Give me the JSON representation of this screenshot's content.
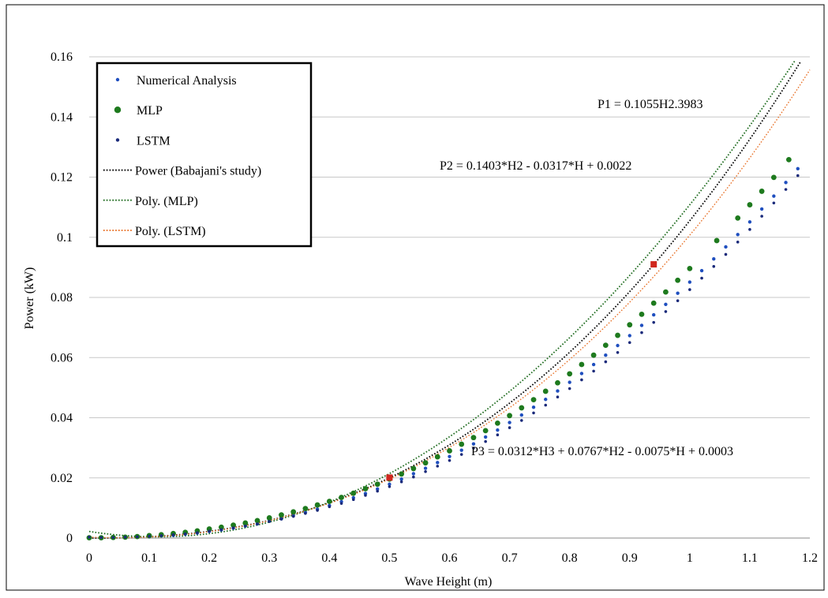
{
  "chart_data": {
    "type": "scatter",
    "title": "",
    "xlabel": "Wave Height (m)",
    "ylabel": "Power (kW)",
    "xlim": [
      0,
      1.2
    ],
    "ylim": [
      0,
      0.16
    ],
    "xticks": [
      "0",
      "0.1",
      "0.2",
      "0.3",
      "0.4",
      "0.5",
      "0.6",
      "0.7",
      "0.8",
      "0.9",
      "1",
      "1.1",
      "1.2"
    ],
    "yticks": [
      "0",
      "0.02",
      "0.04",
      "0.06",
      "0.08",
      "0.1",
      "0.12",
      "0.14",
      "0.16"
    ],
    "grid": "horizontal",
    "legend_position": "top-left",
    "legend": [
      {
        "label": "Numerical Analysis",
        "kind": "marker-small",
        "color": "#1f4fbf"
      },
      {
        "label": "MLP",
        "kind": "marker-large",
        "color": "#1e7a1e"
      },
      {
        "label": "LSTM",
        "kind": "marker-small",
        "color": "#1a2a7a"
      },
      {
        "label": "Power (Babajani's study)",
        "kind": "dotted-line",
        "color": "#000000"
      },
      {
        "label": "Poly. (MLP)",
        "kind": "dotted-line",
        "color": "#1e6b1e"
      },
      {
        "label": "Poly. (LSTM)",
        "kind": "dotted-line",
        "color": "#e8742c"
      }
    ],
    "equations": {
      "p1": "P1 = 0.1055H2.3983",
      "p2": "P2 = 0.1403*H2  - 0.0317*H  + 0.0022",
      "p3": "P3 = 0.0312*H3  + 0.0767*H2  - 0.0075*H  + 0.0003"
    },
    "series": [
      {
        "name": "Numerical Analysis",
        "color": "#1f4fbf",
        "marker_radius": 2.2,
        "x": [
          0,
          0.02,
          0.04,
          0.06,
          0.08,
          0.1,
          0.12,
          0.14,
          0.16,
          0.18,
          0.2,
          0.22,
          0.24,
          0.26,
          0.28,
          0.3,
          0.32,
          0.34,
          0.36,
          0.38,
          0.4,
          0.42,
          0.44,
          0.46,
          0.48,
          0.5,
          0.52,
          0.54,
          0.56,
          0.58,
          0.6,
          0.62,
          0.64,
          0.66,
          0.68,
          0.7,
          0.72,
          0.74,
          0.76,
          0.78,
          0.8,
          0.82,
          0.84,
          0.86,
          0.88,
          0.9,
          0.92,
          0.94,
          0.96,
          0.98,
          1.0,
          1.02,
          1.04,
          1.06,
          1.08,
          1.1,
          1.12,
          1.14,
          1.16,
          1.18
        ],
        "y": [
          0,
          0.0001,
          0.0001,
          0.0001,
          0.0003,
          0.0004,
          0.0007,
          0.0009,
          0.0013,
          0.0017,
          0.0022,
          0.0027,
          0.0033,
          0.004,
          0.0047,
          0.0056,
          0.0064,
          0.0074,
          0.0085,
          0.0096,
          0.0108,
          0.0121,
          0.0134,
          0.0148,
          0.0163,
          0.0179,
          0.0196,
          0.0214,
          0.0232,
          0.0251,
          0.0271,
          0.0292,
          0.0313,
          0.0336,
          0.0359,
          0.0384,
          0.0409,
          0.0435,
          0.0461,
          0.0489,
          0.0518,
          0.0547,
          0.0577,
          0.0608,
          0.064,
          0.0673,
          0.0707,
          0.0742,
          0.0777,
          0.0814,
          0.0851,
          0.0889,
          0.0928,
          0.0968,
          0.1009,
          0.1051,
          0.1094,
          0.1137,
          0.1182,
          0.1228
        ]
      },
      {
        "name": "MLP",
        "color": "#1e7a1e",
        "marker_radius": 3.4,
        "x": [
          0,
          0.02,
          0.04,
          0.06,
          0.08,
          0.1,
          0.12,
          0.14,
          0.16,
          0.18,
          0.2,
          0.22,
          0.24,
          0.26,
          0.28,
          0.3,
          0.32,
          0.34,
          0.36,
          0.38,
          0.4,
          0.42,
          0.44,
          0.46,
          0.48,
          0.5,
          0.52,
          0.54,
          0.56,
          0.58,
          0.6,
          0.62,
          0.64,
          0.66,
          0.68,
          0.7,
          0.72,
          0.74,
          0.76,
          0.78,
          0.8,
          0.82,
          0.84,
          0.86,
          0.88,
          0.9,
          0.92,
          0.94,
          0.96,
          0.98,
          1.0,
          1.045,
          1.08,
          1.1,
          1.12,
          1.14,
          1.165
        ],
        "y": [
          0.0001,
          0.0001,
          0.0002,
          0.0003,
          0.0005,
          0.0008,
          0.0011,
          0.0015,
          0.0019,
          0.0024,
          0.003,
          0.0036,
          0.0043,
          0.005,
          0.0058,
          0.0067,
          0.0077,
          0.0087,
          0.0098,
          0.011,
          0.0122,
          0.0135,
          0.0149,
          0.0164,
          0.0179,
          0.0196,
          0.0213,
          0.0231,
          0.025,
          0.027,
          0.029,
          0.0312,
          0.0334,
          0.0357,
          0.0382,
          0.0407,
          0.0433,
          0.046,
          0.0488,
          0.0516,
          0.0546,
          0.0577,
          0.0608,
          0.0641,
          0.0674,
          0.0709,
          0.0744,
          0.0781,
          0.0818,
          0.0857,
          0.0896,
          0.0989,
          0.1064,
          0.1108,
          0.1153,
          0.1199,
          0.1258
        ]
      },
      {
        "name": "LSTM",
        "color": "#1a2a7a",
        "marker_radius": 1.8,
        "x": [
          0,
          0.02,
          0.04,
          0.06,
          0.08,
          0.1,
          0.12,
          0.14,
          0.16,
          0.18,
          0.2,
          0.22,
          0.24,
          0.26,
          0.28,
          0.3,
          0.32,
          0.34,
          0.36,
          0.38,
          0.4,
          0.42,
          0.44,
          0.46,
          0.48,
          0.5,
          0.52,
          0.54,
          0.56,
          0.58,
          0.6,
          0.62,
          0.64,
          0.66,
          0.68,
          0.7,
          0.72,
          0.74,
          0.76,
          0.78,
          0.8,
          0.82,
          0.84,
          0.86,
          0.88,
          0.9,
          0.92,
          0.94,
          0.96,
          0.98,
          1.0,
          1.02,
          1.04,
          1.06,
          1.08,
          1.1,
          1.12,
          1.14,
          1.16,
          1.18
        ],
        "y": [
          0.0003,
          0.0002,
          0.0002,
          0.0003,
          0.0004,
          0.0006,
          0.0008,
          0.0011,
          0.0014,
          0.0018,
          0.0023,
          0.0028,
          0.0034,
          0.004,
          0.0047,
          0.0055,
          0.0063,
          0.0072,
          0.0082,
          0.0092,
          0.0104,
          0.0115,
          0.0128,
          0.0142,
          0.0156,
          0.0171,
          0.0187,
          0.0203,
          0.0221,
          0.0239,
          0.0258,
          0.0278,
          0.0299,
          0.0321,
          0.0343,
          0.0367,
          0.0391,
          0.0416,
          0.0442,
          0.0469,
          0.0497,
          0.0526,
          0.0555,
          0.0586,
          0.0617,
          0.065,
          0.0683,
          0.0717,
          0.0753,
          0.0789,
          0.0826,
          0.0864,
          0.0903,
          0.0943,
          0.0984,
          0.1026,
          0.107,
          0.1114,
          0.1159,
          0.1205
        ]
      }
    ],
    "highlighted_points": [
      {
        "x": 0.5,
        "y": 0.0201,
        "color": "#d0281f"
      },
      {
        "x": 0.94,
        "y": 0.091,
        "color": "#d0281f"
      }
    ]
  }
}
